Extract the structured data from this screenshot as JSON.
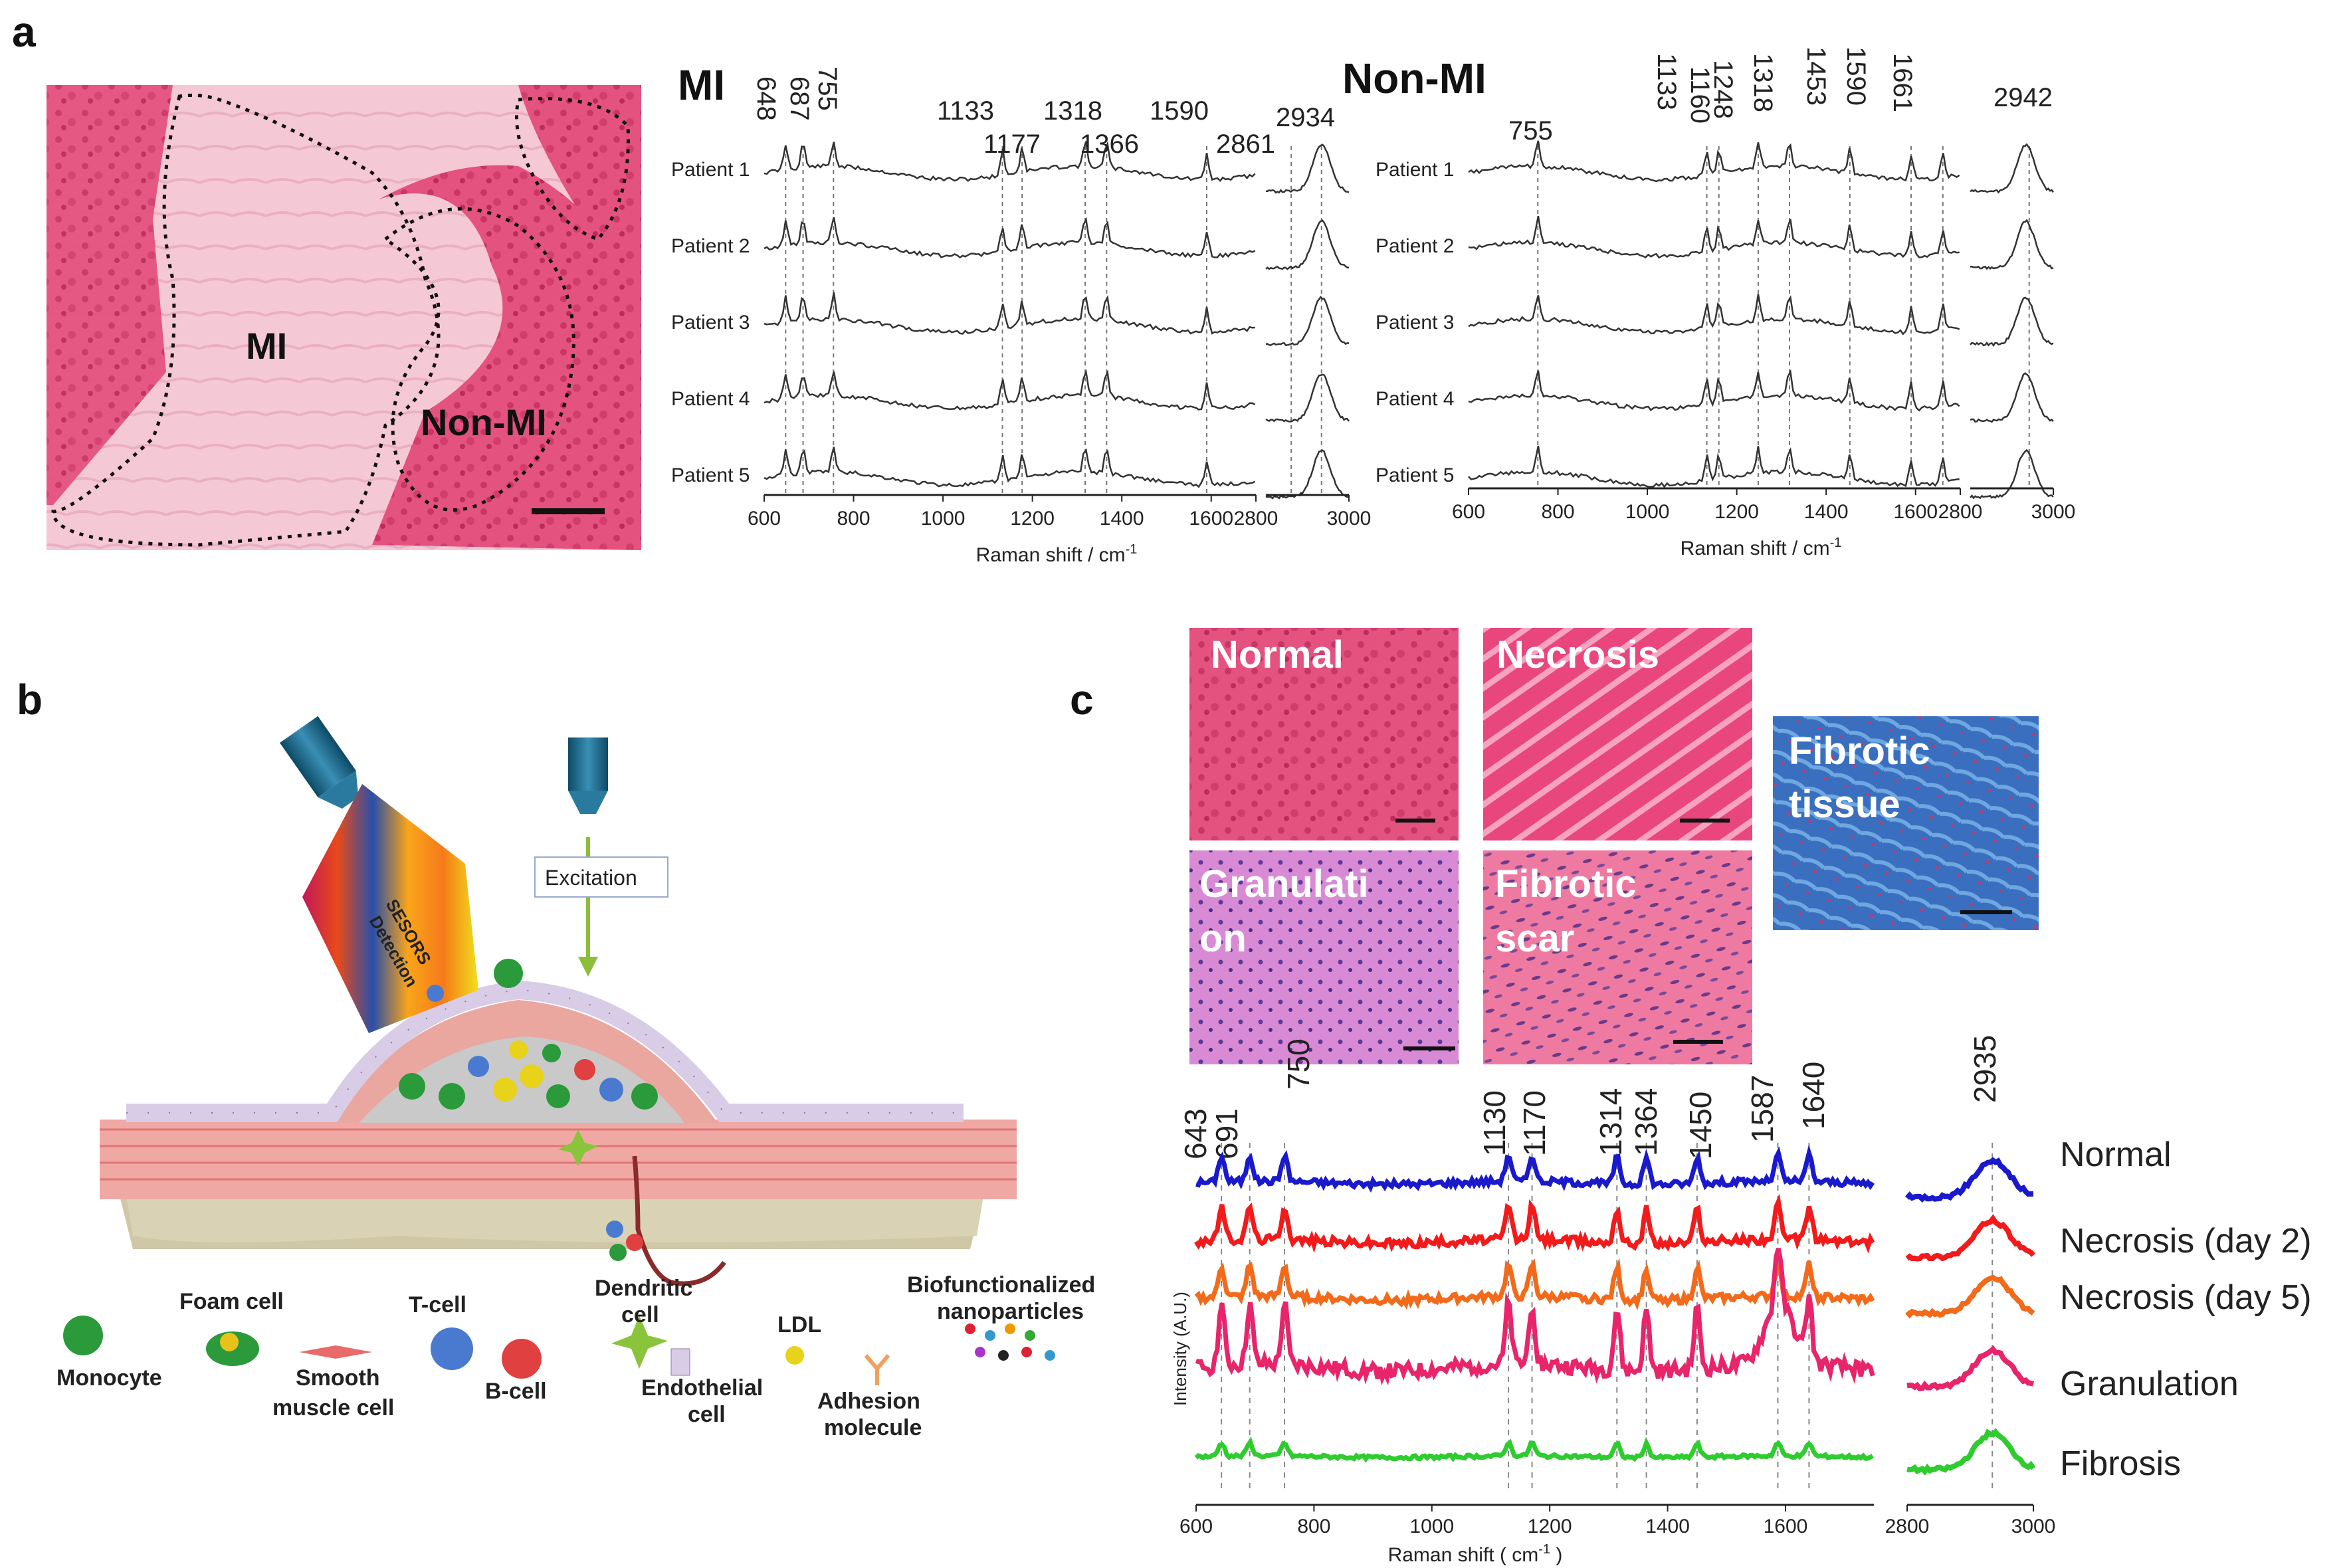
{
  "panel_labels": {
    "a": "a",
    "b": "b",
    "c": "c"
  },
  "histology_a": {
    "mi_label": "MI",
    "nonmi_label": "Non-MI"
  },
  "panel_a_spectra": {
    "mi": {
      "title": "MI",
      "peaks": [
        "648",
        "687",
        "755",
        "1133",
        "1177",
        "1318",
        "1366",
        "1590",
        "2861",
        "2934"
      ],
      "patients": [
        "Patient 1",
        "Patient 2",
        "Patient 3",
        "Patient 4",
        "Patient 5"
      ],
      "ticks_left": [
        "600",
        "800",
        "1000",
        "1200",
        "1400",
        "1600",
        "2800"
      ],
      "ticks_right": [
        "2800",
        "3000"
      ],
      "xlabel": "Raman shift / cm",
      "xlabel_sup": "-1"
    },
    "nonmi": {
      "title": "Non-MI",
      "peaks": [
        "755",
        "1133",
        "1160",
        "1248",
        "1318",
        "1453",
        "1590",
        "1661",
        "2942"
      ],
      "patients": [
        "Patient 1",
        "Patient 2",
        "Patient 3",
        "Patient 4",
        "Patient 5"
      ],
      "ticks_left": [
        "600",
        "800",
        "1000",
        "1200",
        "1400",
        "1600",
        "2800"
      ],
      "ticks_right": [
        "2800",
        "3000"
      ],
      "xlabel": "Raman shift / cm",
      "xlabel_sup": "-1"
    }
  },
  "panel_b": {
    "detection_label_1": "SESORS",
    "detection_label_2": "Detection",
    "excitation_label": "Excitation",
    "legend": {
      "monocyte": "Monocyte",
      "foam_cell": "Foam cell",
      "smooth_1": "Smooth",
      "smooth_2": "muscle cell",
      "tcell": "T-cell",
      "bcell": "B-cell",
      "dendritic_1": "Dendritic",
      "dendritic_2": "cell",
      "endothelial_1": "Endothelial",
      "endothelial_2": "cell",
      "ldl": "LDL",
      "adhesion_1": "Adhesion",
      "adhesion_2": "molecule",
      "bio_1": "Biofunctionalized",
      "bio_2": "nanoparticles"
    }
  },
  "panel_c_histology": {
    "normal": "Normal",
    "necrosis": "Necrosis",
    "granulation_1": "Granulati",
    "granulation_2": "on",
    "fibrotic_scar_1": "Fibrotic",
    "fibrotic_scar_2": "scar",
    "fibrotic_tissue_1": "Fibrotic",
    "fibrotic_tissue_2": "tissue"
  },
  "panel_c_spectra": {
    "peaks": [
      "643",
      "691",
      "750",
      "1130",
      "1170",
      "1314",
      "1364",
      "1450",
      "1587",
      "1640",
      "2935"
    ],
    "series": [
      "Normal",
      "Necrosis (day 2)",
      "Necrosis (day 5)",
      "Granulation",
      "Fibrosis"
    ],
    "series_colors": [
      "#1a1acc",
      "#f21a1a",
      "#f26a1a",
      "#e8246a",
      "#2ecc2e"
    ],
    "ylabel": "Intensity (A.U.)",
    "ticks_left": [
      "600",
      "800",
      "1000",
      "1200",
      "1400",
      "1600"
    ],
    "ticks_right": [
      "2800",
      "3000"
    ],
    "xlabel": "Raman shift ( cm",
    "xlabel_sup": "-1",
    "xlabel_end": " )"
  }
}
